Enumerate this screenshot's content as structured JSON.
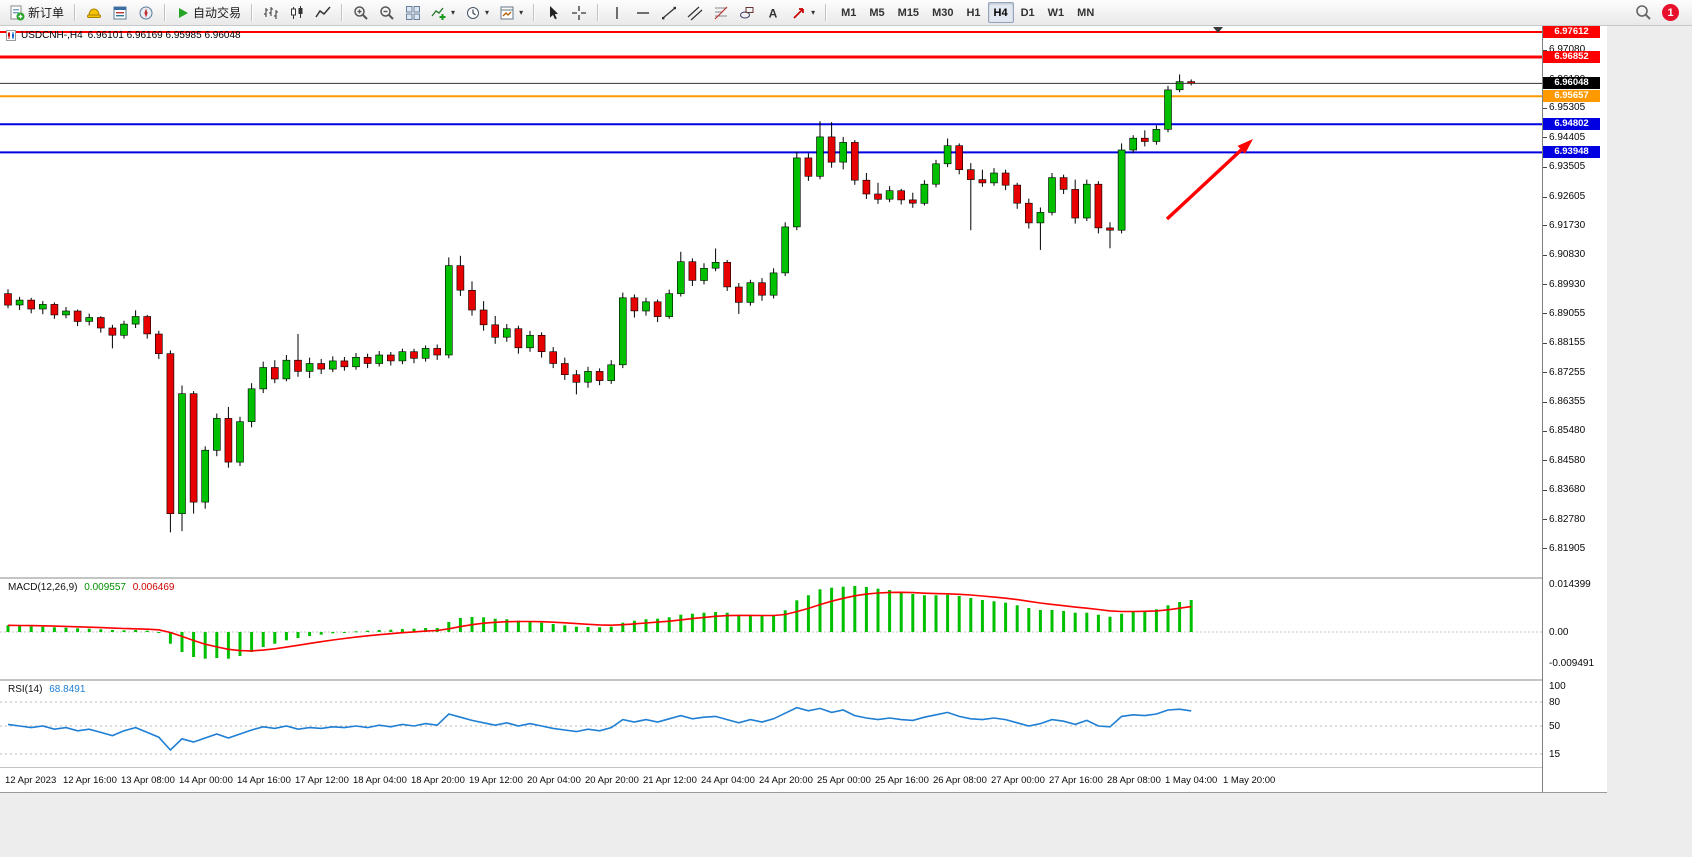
{
  "toolbar": {
    "new_order_label": "新订单",
    "autotrading_label": "自动交易",
    "timeframes": [
      "M1",
      "M5",
      "M15",
      "M30",
      "H1",
      "H4",
      "D1",
      "W1",
      "MN"
    ],
    "active_timeframe": "H4",
    "notification_count": "1"
  },
  "chart": {
    "symbol": "USDCNH-,H4",
    "ohlc_text": "6.96101 6.96169 6.95985 6.96048"
  },
  "indicators": {
    "macd": {
      "label": "MACD(12,26,9)",
      "value_main": "0.009557",
      "value_signal": "0.006469",
      "axis": [
        {
          "t": "0.014399",
          "v": 0.014399
        },
        {
          "t": "0.00",
          "v": 0
        },
        {
          "t": "-0.009491",
          "v": -0.009491
        }
      ]
    },
    "rsi": {
      "label": "RSI(14)",
      "value": "68.8491",
      "axis": [
        {
          "t": "100",
          "v": 100
        },
        {
          "t": "80",
          "v": 80
        },
        {
          "t": "50",
          "v": 50
        },
        {
          "t": "15",
          "v": 15
        }
      ],
      "levels": [
        80,
        50,
        15
      ]
    }
  },
  "price_axis": {
    "labels": [
      "6.97080",
      "6.96180",
      "6.95305",
      "6.94405",
      "6.93505",
      "6.92605",
      "6.91730",
      "6.90830",
      "6.89930",
      "6.89055",
      "6.88155",
      "6.87255",
      "6.86355",
      "6.85480",
      "6.84580",
      "6.83680",
      "6.82780",
      "6.81905"
    ]
  },
  "time_axis": {
    "labels": [
      "12 Apr 2023",
      "12 Apr 16:00",
      "13 Apr 08:00",
      "14 Apr 00:00",
      "14 Apr 16:00",
      "17 Apr 12:00",
      "18 Apr 04:00",
      "18 Apr 20:00",
      "19 Apr 12:00",
      "20 Apr 04:00",
      "20 Apr 20:00",
      "21 Apr 12:00",
      "24 Apr 04:00",
      "24 Apr 20:00",
      "25 Apr 00:00",
      "25 Apr 16:00",
      "26 Apr 08:00",
      "27 Apr 00:00",
      "27 Apr 16:00",
      "28 Apr 08:00",
      "1 May 04:00",
      "1 May 20:00"
    ]
  },
  "colors": {
    "bull": "#00c000",
    "bear": "#e60000",
    "wick": "#000000",
    "macd_hist": "#00c000",
    "macd_signal": "#ff0000",
    "rsi_line": "#1f7fd4",
    "bid_line": "#333333",
    "arrow": "#ff0000",
    "level_red": "#ff0000",
    "level_blue": "#0000e0",
    "level_orange": "#ff9900"
  },
  "icons": {
    "chevron_down_glyph": "▾"
  },
  "chart_data": [
    {
      "name": "USDCNH H4 price",
      "type": "candlestick",
      "ylim": [
        6.81,
        6.979
      ],
      "levels": [
        {
          "label": "6.97612",
          "value": 6.97612,
          "color": "#ff0000",
          "thickness": 2
        },
        {
          "label": "6.96852",
          "value": 6.96852,
          "color": "#ff0000",
          "thickness": 3
        },
        {
          "label": "6.95657",
          "value": 6.95657,
          "color": "#ff9900",
          "thickness": 2
        },
        {
          "label": "6.94802",
          "value": 6.94802,
          "color": "#0000e0",
          "thickness": 2
        },
        {
          "label": "6.93948",
          "value": 6.93948,
          "color": "#0000e0",
          "thickness": 2
        }
      ],
      "bid": {
        "label": "6.96048",
        "value": 6.96048,
        "color": "#000000"
      },
      "ohlc": [
        [
          6.8965,
          6.8978,
          6.892,
          6.893
        ],
        [
          6.893,
          6.8955,
          6.8915,
          6.8945
        ],
        [
          6.8945,
          6.8952,
          6.8905,
          6.8918
        ],
        [
          6.8918,
          6.8942,
          6.8902,
          6.8932
        ],
        [
          6.8932,
          6.8938,
          6.8888,
          6.89
        ],
        [
          6.89,
          6.8924,
          6.889,
          6.8912
        ],
        [
          6.8912,
          6.8916,
          6.8866,
          6.888
        ],
        [
          6.888,
          6.8904,
          6.8868,
          6.8892
        ],
        [
          6.8892,
          6.8896,
          6.8846,
          6.886
        ],
        [
          6.886,
          6.887,
          6.8798,
          6.8838
        ],
        [
          6.8838,
          6.8882,
          6.8828,
          6.8872
        ],
        [
          6.8872,
          6.8914,
          6.886,
          6.8895
        ],
        [
          6.8895,
          6.89,
          6.8828,
          6.8842
        ],
        [
          6.8842,
          6.8852,
          6.8766,
          6.8782
        ],
        [
          6.8782,
          6.8792,
          6.8238,
          6.8295
        ],
        [
          6.8295,
          6.8685,
          6.8242,
          6.866
        ],
        [
          6.866,
          6.8668,
          6.8295,
          6.833
        ],
        [
          6.833,
          6.85,
          6.831,
          6.8488
        ],
        [
          6.8488,
          6.86,
          6.847,
          6.8585
        ],
        [
          6.8585,
          6.862,
          6.8435,
          6.8452
        ],
        [
          6.8452,
          6.859,
          6.844,
          6.8575
        ],
        [
          6.8575,
          6.8692,
          6.8558,
          6.8675
        ],
        [
          6.8675,
          6.8758,
          6.8662,
          6.874
        ],
        [
          6.874,
          6.8762,
          6.8692,
          6.8705
        ],
        [
          6.8705,
          6.8778,
          6.8698,
          6.8762
        ],
        [
          6.8762,
          6.8842,
          6.8712,
          6.8728
        ],
        [
          6.8728,
          6.877,
          6.8708,
          6.8752
        ],
        [
          6.8752,
          6.8766,
          6.872,
          6.8735
        ],
        [
          6.8735,
          6.8774,
          6.8726,
          6.876
        ],
        [
          6.876,
          6.8772,
          6.873,
          6.8742
        ],
        [
          6.8742,
          6.8784,
          6.8733,
          6.8771
        ],
        [
          6.8771,
          6.8782,
          6.8738,
          6.8752
        ],
        [
          6.8752,
          6.879,
          6.8743,
          6.8778
        ],
        [
          6.8778,
          6.8787,
          6.8746,
          6.876
        ],
        [
          6.876,
          6.8797,
          6.875,
          6.8788
        ],
        [
          6.8788,
          6.8797,
          6.8753,
          6.8768
        ],
        [
          6.8768,
          6.8807,
          6.8758,
          6.8798
        ],
        [
          6.8798,
          6.881,
          6.8763,
          6.8778
        ],
        [
          6.8778,
          6.9075,
          6.8768,
          6.905
        ],
        [
          6.905,
          6.908,
          6.8958,
          6.8975
        ],
        [
          6.8975,
          6.9002,
          6.8898,
          6.8915
        ],
        [
          6.8915,
          6.8942,
          6.8852,
          6.887
        ],
        [
          6.887,
          6.8897,
          6.8812,
          6.8832
        ],
        [
          6.8832,
          6.8872,
          6.8818,
          6.8858
        ],
        [
          6.8858,
          6.8867,
          6.8782,
          6.88
        ],
        [
          6.88,
          6.8852,
          6.8788,
          6.8838
        ],
        [
          6.8838,
          6.8847,
          6.877,
          6.8788
        ],
        [
          6.8788,
          6.8802,
          6.8738,
          6.8752
        ],
        [
          6.8752,
          6.877,
          6.8702,
          6.8718
        ],
        [
          6.8718,
          6.8732,
          6.8658,
          6.8695
        ],
        [
          6.8695,
          6.8742,
          6.8678,
          6.8728
        ],
        [
          6.8728,
          6.8737,
          6.8686,
          6.87
        ],
        [
          6.87,
          6.8762,
          6.869,
          6.8748
        ],
        [
          6.8748,
          6.8968,
          6.8738,
          6.8952
        ],
        [
          6.8952,
          6.8962,
          6.8892,
          6.8912
        ],
        [
          6.8912,
          6.8952,
          6.8898,
          6.894
        ],
        [
          6.894,
          6.8947,
          6.8878,
          6.8895
        ],
        [
          6.8895,
          6.8977,
          6.8888,
          6.8965
        ],
        [
          6.8965,
          6.9092,
          6.8956,
          6.9062
        ],
        [
          6.9062,
          6.9072,
          6.8988,
          6.9005
        ],
        [
          6.9005,
          6.9057,
          6.8993,
          6.9042
        ],
        [
          6.9042,
          6.9102,
          6.9033,
          6.906
        ],
        [
          6.906,
          6.9067,
          6.8973,
          6.8985
        ],
        [
          6.8985,
          6.8997,
          6.8903,
          6.8938
        ],
        [
          6.8938,
          6.9007,
          6.8928,
          6.8998
        ],
        [
          6.8998,
          6.9012,
          6.8943,
          6.896
        ],
        [
          6.896,
          6.9042,
          6.895,
          6.9028
        ],
        [
          6.9028,
          6.9182,
          6.9018,
          6.9168
        ],
        [
          6.9168,
          6.9397,
          6.9158,
          6.9378
        ],
        [
          6.9378,
          6.9392,
          6.9308,
          6.9322
        ],
        [
          6.9322,
          6.949,
          6.9313,
          6.9442
        ],
        [
          6.9442,
          6.9487,
          6.9348,
          6.9365
        ],
        [
          6.9365,
          6.9442,
          6.9343,
          6.9425
        ],
        [
          6.9425,
          6.9432,
          6.9296,
          6.931
        ],
        [
          6.931,
          6.9332,
          6.9253,
          6.9268
        ],
        [
          6.9268,
          6.9302,
          6.9238,
          6.9252
        ],
        [
          6.9252,
          6.9292,
          6.9243,
          6.9278
        ],
        [
          6.9278,
          6.9284,
          6.9236,
          6.925
        ],
        [
          6.925,
          6.9272,
          6.9226,
          6.924
        ],
        [
          6.924,
          6.931,
          6.9233,
          6.9298
        ],
        [
          6.9298,
          6.9372,
          6.9288,
          6.936
        ],
        [
          6.936,
          6.9437,
          6.935,
          6.9415
        ],
        [
          6.9415,
          6.9422,
          6.9328,
          6.9342
        ],
        [
          6.9342,
          6.9362,
          6.9158,
          6.9312
        ],
        [
          6.9312,
          6.9342,
          6.929,
          6.9302
        ],
        [
          6.9302,
          6.9347,
          6.9293,
          6.9332
        ],
        [
          6.9332,
          6.9342,
          6.928,
          6.9295
        ],
        [
          6.9295,
          6.9302,
          6.9223,
          6.924
        ],
        [
          6.924,
          6.9254,
          6.9163,
          6.918
        ],
        [
          6.918,
          6.9227,
          6.9098,
          6.9212
        ],
        [
          6.9212,
          6.9332,
          6.9203,
          6.9318
        ],
        [
          6.9318,
          6.9327,
          6.9268,
          6.9282
        ],
        [
          6.9282,
          6.9312,
          6.9178,
          6.9195
        ],
        [
          6.9195,
          6.9312,
          6.9186,
          6.9298
        ],
        [
          6.9298,
          6.9307,
          6.9148,
          6.9165
        ],
        [
          6.9165,
          6.9182,
          6.9103,
          6.9158
        ],
        [
          6.9158,
          6.9422,
          6.9148,
          6.9402
        ],
        [
          6.9402,
          6.9447,
          6.9393,
          6.9438
        ],
        [
          6.9438,
          6.9462,
          6.9413,
          6.9428
        ],
        [
          6.9428,
          6.9477,
          6.9418,
          6.9465
        ],
        [
          6.9465,
          6.9597,
          6.9456,
          6.9585
        ],
        [
          6.9585,
          6.9632,
          6.9578,
          6.96101
        ],
        [
          6.96101,
          6.96169,
          6.95985,
          6.96048
        ]
      ]
    },
    {
      "name": "MACD(12,26,9)",
      "type": "bar",
      "signal_ema_period": 9,
      "ylim": [
        -0.0125,
        0.0175
      ],
      "values": [
        0.002,
        0.0018,
        0.0017,
        0.0016,
        0.0014,
        0.0013,
        0.0011,
        0.001,
        0.0008,
        0.0006,
        0.0005,
        0.0006,
        0.0004,
        0.0,
        -0.0035,
        -0.006,
        -0.0075,
        -0.008,
        -0.0078,
        -0.008,
        -0.0072,
        -0.006,
        -0.0045,
        -0.0035,
        -0.0025,
        -0.0018,
        -0.0012,
        -0.0008,
        -0.0004,
        -0.0002,
        0.0002,
        0.0004,
        0.0006,
        0.0007,
        0.0009,
        0.001,
        0.0012,
        0.0012,
        0.003,
        0.0042,
        0.0045,
        0.0044,
        0.004,
        0.0038,
        0.0034,
        0.0032,
        0.0028,
        0.0024,
        0.002,
        0.0016,
        0.0015,
        0.0014,
        0.0016,
        0.0028,
        0.0034,
        0.0038,
        0.004,
        0.0044,
        0.0052,
        0.0055,
        0.0058,
        0.006,
        0.0058,
        0.0052,
        0.005,
        0.0048,
        0.005,
        0.0065,
        0.0095,
        0.011,
        0.0128,
        0.0133,
        0.0136,
        0.0138,
        0.0135,
        0.013,
        0.0126,
        0.012,
        0.0114,
        0.011,
        0.011,
        0.0112,
        0.0108,
        0.0102,
        0.0096,
        0.0092,
        0.0088,
        0.008,
        0.0072,
        0.0066,
        0.0066,
        0.0063,
        0.0058,
        0.0058,
        0.0052,
        0.0046,
        0.0055,
        0.0062,
        0.0064,
        0.0068,
        0.008,
        0.009,
        0.0096
      ]
    },
    {
      "name": "RSI(14)",
      "type": "line",
      "ylim": [
        0,
        100
      ],
      "levels": [
        80,
        50,
        15
      ],
      "values": [
        52,
        50,
        48,
        50,
        46,
        48,
        44,
        46,
        42,
        38,
        44,
        48,
        42,
        36,
        20,
        34,
        30,
        35,
        40,
        35,
        40,
        45,
        49,
        47,
        50,
        46,
        48,
        47,
        49,
        48,
        50,
        48,
        51,
        49,
        52,
        50,
        53,
        51,
        65,
        61,
        57,
        54,
        51,
        54,
        50,
        53,
        50,
        47,
        45,
        43,
        46,
        44,
        48,
        58,
        55,
        58,
        55,
        59,
        63,
        59,
        61,
        62,
        58,
        54,
        58,
        55,
        59,
        66,
        73,
        69,
        72,
        67,
        70,
        63,
        60,
        58,
        60,
        58,
        57,
        61,
        64,
        67,
        62,
        59,
        58,
        60,
        58,
        54,
        50,
        53,
        58,
        56,
        52,
        57,
        50,
        49,
        62,
        64,
        63,
        65,
        70,
        71,
        68.85
      ]
    }
  ]
}
